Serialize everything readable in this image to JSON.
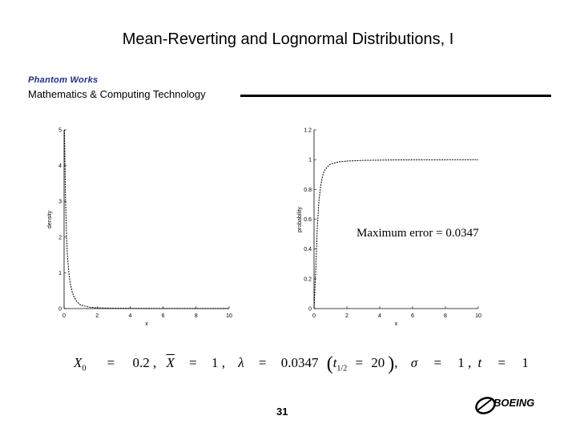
{
  "slide": {
    "title": "Mean-Reverting and Lognormal Distributions, I",
    "brand_line": "Phantom Works",
    "subtitle": "Mathematics & Computing Technology",
    "annotation": "Maximum error  =  0.0347",
    "page_number": "31",
    "logo_text": "BOEING",
    "params": {
      "x0_sym": "X",
      "x0_sub": "0",
      "x0_val": "0.2 ,",
      "xbar_sym": "X",
      "xbar_val": "1 ,",
      "lambda_sym": "λ",
      "lambda_val": "0.0347",
      "t_half_sym": "t",
      "t_half_sub": "1/2",
      "t_half_val": "20",
      "sigma_sym": "σ",
      "sigma_val": "1 ,",
      "t_sym": "t",
      "t_val": "1",
      "eq": "="
    }
  },
  "chart_data": [
    {
      "type": "line",
      "xlabel": "x",
      "ylabel": "density",
      "xlim": [
        0,
        10
      ],
      "ylim": [
        0,
        5
      ],
      "xticks": [
        "0",
        "2",
        "4",
        "6",
        "8",
        "10"
      ],
      "yticks": [
        "0",
        "1",
        "2",
        "3",
        "4",
        "5"
      ],
      "x": [
        0.02,
        0.05,
        0.08,
        0.1,
        0.15,
        0.2,
        0.3,
        0.4,
        0.5,
        0.6,
        0.8,
        1.0,
        1.5,
        2.0,
        3.0,
        5.0,
        7.0,
        10.0
      ],
      "y": [
        5.0,
        4.3,
        3.3,
        2.8,
        2.0,
        1.5,
        0.95,
        0.65,
        0.45,
        0.32,
        0.18,
        0.1,
        0.04,
        0.02,
        0.01,
        0.005,
        0.003,
        0.002
      ],
      "grid": false
    },
    {
      "type": "line",
      "xlabel": "x",
      "ylabel": "probability",
      "xlim": [
        0,
        10
      ],
      "ylim": [
        0,
        1.2
      ],
      "xticks": [
        "0",
        "2",
        "4",
        "6",
        "8",
        "10"
      ],
      "yticks": [
        "0",
        "0.2",
        "0.4",
        "0.6",
        "0.8",
        "1",
        "1.2"
      ],
      "x": [
        0.0,
        0.1,
        0.2,
        0.3,
        0.4,
        0.5,
        0.6,
        0.8,
        1.0,
        1.5,
        2.0,
        3.0,
        5.0,
        10.0
      ],
      "y": [
        0.0,
        0.25,
        0.55,
        0.72,
        0.82,
        0.88,
        0.92,
        0.95,
        0.97,
        0.985,
        0.99,
        0.995,
        0.998,
        1.0
      ],
      "grid": false
    }
  ],
  "colors": {
    "line": "#000000",
    "brand": "#1a2f8f"
  }
}
